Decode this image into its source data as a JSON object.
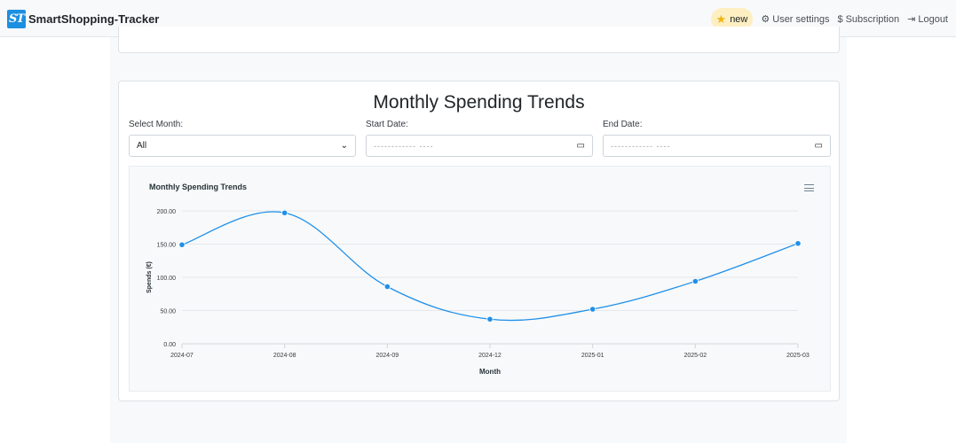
{
  "navbar": {
    "logo_text": "ST",
    "brand": "SmartShopping-Tracker",
    "new_badge": "new",
    "user_settings": "User settings",
    "subscription": "Subscription",
    "logout": "Logout",
    "icons": [
      "star-icon",
      "gear-icon",
      "dollar-icon",
      "logout-icon"
    ]
  },
  "card": {
    "title": "Monthly Spending Trends",
    "filters": {
      "month_label": "Select Month:",
      "month_value": "All",
      "start_label": "Start Date:",
      "start_placeholder": "------------ ----",
      "end_label": "End Date:",
      "end_placeholder": "------------ ----"
    }
  },
  "colors": {
    "accent": "#1d8fe1",
    "series": "#1e90ea",
    "badge": "#fdefc2"
  },
  "chart_data": {
    "type": "line",
    "title": "Monthly Spending Trends",
    "xlabel": "Month",
    "ylabel": "Spends (€)",
    "categories": [
      "2024-07",
      "2024-08",
      "2024-09",
      "2024-12",
      "2025-01",
      "2025-02",
      "2025-03"
    ],
    "series": [
      {
        "values": [
          149,
          197,
          86,
          37,
          52,
          94,
          151
        ]
      }
    ],
    "ylim": [
      0,
      200
    ],
    "yticks": [
      "0.00",
      "50.00",
      "100.00",
      "150.00",
      "200.00"
    ],
    "grid": true,
    "smooth": true,
    "legend": "none"
  }
}
